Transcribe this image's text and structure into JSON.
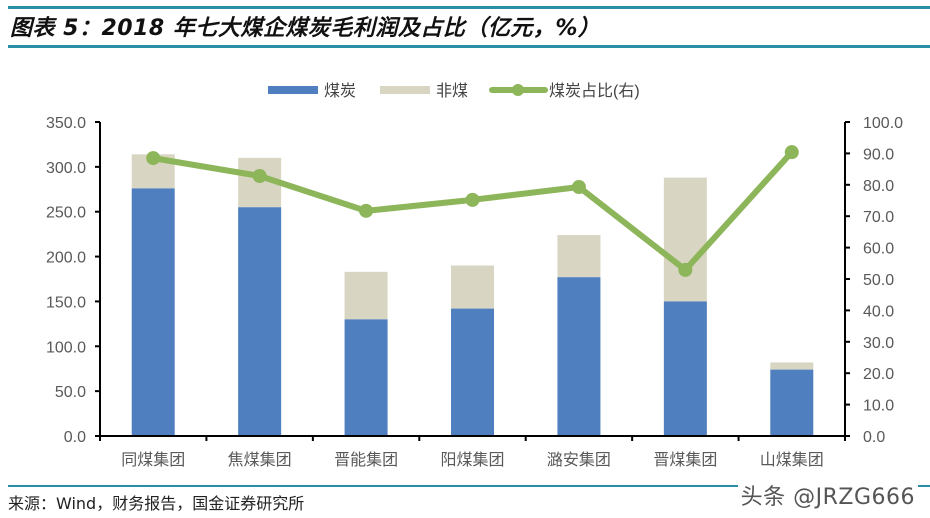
{
  "header": {
    "title": "图表 5：2018 年七大煤企煤炭毛利润及占比（亿元，%）"
  },
  "footer": {
    "source": "来源：Wind，财务报告，国金证券研究所",
    "watermark": "头条 @JRZG666"
  },
  "colors": {
    "accent_rule": "#2a8ea7",
    "coal_bar": "#4f7fbf",
    "noncoal_bar": "#d8d6c2",
    "ratio_line": "#8db559",
    "axis": "#000000",
    "tick_label": "#595959"
  },
  "chart_data": {
    "type": "bar",
    "subtype": "stacked bar + line (secondary axis)",
    "title": "2018 年七大煤企煤炭毛利润及占比（亿元，%）",
    "categories": [
      "同煤集团",
      "焦煤集团",
      "晋能集团",
      "阳煤集团",
      "潞安集团",
      "晋煤集团",
      "山煤集团"
    ],
    "series": [
      {
        "name": "煤炭",
        "type": "bar",
        "axis": "left",
        "values": [
          276,
          255,
          130,
          142,
          177,
          150,
          74
        ]
      },
      {
        "name": "非煤",
        "type": "bar",
        "axis": "left",
        "values": [
          38,
          55,
          53,
          48,
          47,
          138,
          8
        ]
      },
      {
        "name": "煤炭占比(右)",
        "type": "line",
        "axis": "right",
        "values": [
          88.5,
          82.8,
          71.7,
          75.2,
          79.3,
          52.9,
          90.4
        ]
      }
    ],
    "legend": [
      "煤炭",
      "非煤",
      "煤炭占比(右)"
    ],
    "legend_position": "top",
    "xlabel": "",
    "ylabel": "亿元",
    "ylabel_right": "%",
    "ylim": [
      0,
      350
    ],
    "ylim_right": [
      0,
      100
    ],
    "yticks": [
      "0.0",
      "50.0",
      "100.0",
      "150.0",
      "200.0",
      "250.0",
      "300.0",
      "350.0"
    ],
    "yticks_right": [
      "0.0",
      "10.0",
      "20.0",
      "30.0",
      "40.0",
      "50.0",
      "60.0",
      "70.0",
      "80.0",
      "90.0",
      "100.0"
    ],
    "grid": false
  }
}
